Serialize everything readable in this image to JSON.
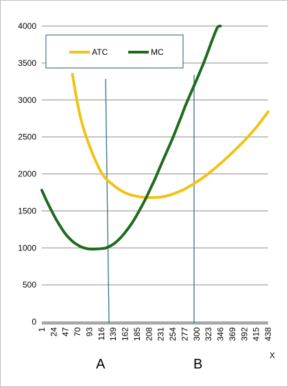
{
  "chart_data": {
    "type": "line",
    "title": "",
    "xlabel": "X",
    "ylabel": "",
    "ylim": [
      0,
      4000
    ],
    "yticks": [
      0,
      500,
      1000,
      1500,
      2000,
      2500,
      3000,
      3500,
      4000
    ],
    "x_tick_labels": [
      "1",
      "24",
      "47",
      "70",
      "93",
      "116",
      "139",
      "162",
      "185",
      "208",
      "231",
      "254",
      "277",
      "300",
      "323",
      "346",
      "369",
      "392",
      "415",
      "438"
    ],
    "grid": true,
    "legend": {
      "placement": "top-left",
      "entries": [
        "ATC",
        "MC"
      ]
    },
    "series": [
      {
        "name": "ATC",
        "color": "#f2c314",
        "x": [
          60,
          70,
          80,
          93,
          105,
          116,
          125,
          139,
          150,
          162,
          175,
          185,
          200,
          208,
          220,
          231,
          245,
          254,
          270,
          277,
          290,
          300,
          320,
          346,
          369,
          392,
          415,
          438
        ],
        "y": [
          3350,
          2950,
          2650,
          2380,
          2175,
          2020,
          1935,
          1850,
          1792,
          1746,
          1712,
          1697,
          1682,
          1680,
          1682,
          1688,
          1708,
          1728,
          1773,
          1796,
          1848,
          1892,
          1990,
          2140,
          2290,
          2450,
          2630,
          2840
        ]
      },
      {
        "name": "MC",
        "color": "#1d6b1d",
        "x": [
          1,
          10,
          24,
          35,
          47,
          60,
          70,
          80,
          93,
          105,
          116,
          125,
          139,
          150,
          162,
          175,
          185,
          200,
          208,
          220,
          231,
          245,
          254,
          270,
          277,
          290,
          300,
          310,
          320,
          330,
          340,
          346
        ],
        "y": [
          1780,
          1640,
          1445,
          1310,
          1185,
          1090,
          1040,
          1005,
          985,
          985,
          990,
          1000,
          1050,
          1115,
          1210,
          1335,
          1450,
          1645,
          1760,
          1940,
          2120,
          2345,
          2490,
          2770,
          2900,
          3115,
          3275,
          3440,
          3620,
          3810,
          3980,
          4000
        ]
      }
    ],
    "vertical_lines": [
      {
        "name": "A",
        "x": 135
      },
      {
        "name": "B",
        "x": 300
      }
    ],
    "markers": [
      "A",
      "B"
    ]
  }
}
